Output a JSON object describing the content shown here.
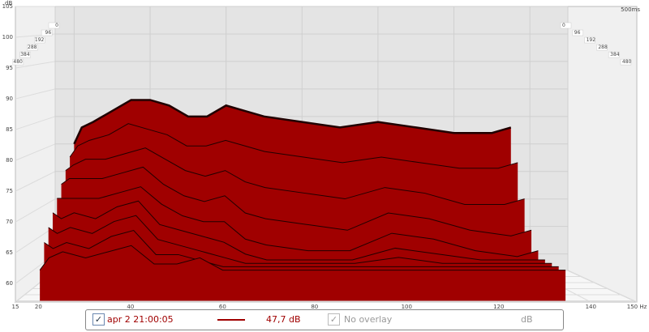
{
  "chart_data": {
    "type": "waterfall",
    "y_unit": "dB",
    "ylim": [
      57,
      105
    ],
    "yticks": [
      60,
      65,
      70,
      75,
      80,
      85,
      90,
      95,
      100,
      105
    ],
    "xlim": [
      15,
      150
    ],
    "xticks": [
      15,
      20,
      40,
      60,
      80,
      100,
      120,
      140,
      {
        "value": 150,
        "label": "150 Hz"
      }
    ],
    "tlim": [
      0,
      500
    ],
    "time_ticks": [
      0,
      96,
      192,
      288,
      384,
      480
    ],
    "time_end_label": {
      "value": 500,
      "label": "500ms"
    },
    "color": "#a00000",
    "frequencies": [
      20,
      22,
      25,
      30,
      35,
      40,
      45,
      50,
      55,
      60,
      65,
      70,
      80,
      90,
      100,
      110,
      120,
      130,
      135
    ],
    "slices": [
      {
        "time": 0,
        "values": [
          80,
          83,
          84,
          86,
          88,
          88,
          87,
          85,
          85,
          87,
          86,
          85,
          84,
          83,
          84,
          83,
          82,
          82,
          83
        ]
      },
      {
        "time": 60,
        "values": [
          78,
          80,
          81,
          82,
          84,
          83,
          82,
          80,
          80,
          81,
          80,
          79,
          78,
          77,
          78,
          77,
          76,
          76,
          77
        ]
      },
      {
        "time": 120,
        "values": [
          76,
          77,
          78,
          78,
          79,
          80,
          78,
          76,
          75,
          76,
          74,
          73,
          72,
          71,
          73,
          72,
          70,
          70,
          71
        ]
      },
      {
        "time": 180,
        "values": [
          74,
          75,
          75,
          75,
          76,
          77,
          74,
          72,
          71,
          72,
          69,
          68,
          67,
          66,
          69,
          68,
          66,
          65,
          66
        ]
      },
      {
        "time": 240,
        "values": [
          72,
          72,
          72,
          72,
          73,
          74,
          71,
          69,
          68,
          68,
          65,
          64,
          63,
          63,
          66,
          65,
          63,
          62,
          63
        ]
      },
      {
        "time": 300,
        "values": [
          70,
          69,
          70,
          69,
          71,
          72,
          68,
          67,
          66,
          65,
          63,
          62,
          62,
          62,
          64,
          63,
          62,
          62,
          62
        ]
      },
      {
        "time": 360,
        "values": [
          68,
          67,
          68,
          67,
          69,
          70,
          66,
          65,
          64,
          63,
          62,
          62,
          62,
          62,
          63,
          62,
          62,
          62,
          62
        ]
      },
      {
        "time": 420,
        "values": [
          66,
          65,
          66,
          65,
          67,
          68,
          64,
          64,
          63,
          62,
          62,
          62,
          62,
          62,
          62,
          62,
          62,
          62,
          62
        ]
      },
      {
        "time": 480,
        "values": [
          62,
          64,
          65,
          64,
          65,
          66,
          63,
          63,
          64,
          62,
          62,
          62,
          62,
          62,
          62,
          62,
          62,
          62,
          62
        ]
      }
    ],
    "legend": {
      "name": "apr 2 21:00:05",
      "level": "47,7 dB",
      "overlay": "No overlay",
      "overlay_unit": "dB"
    }
  }
}
